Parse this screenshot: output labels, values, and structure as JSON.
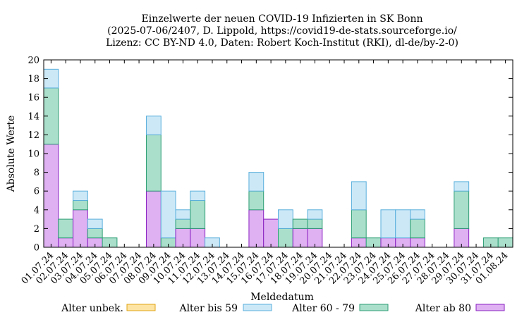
{
  "chart_data": {
    "type": "bar",
    "stacked": true,
    "title": [
      "Einzelwerte der neuen COVID-19 Infizierten in SK Bonn",
      "(2025-07-06/2407, D. Lippold, https://covid19-de-stats.sourceforge.io/",
      "Lizenz: CC BY-ND 4.0, Daten: Robert Koch-Institut (RKI), dl-de/by-2-0)"
    ],
    "xlabel": "Meldedatum",
    "ylabel": "Absolute Werte",
    "ylim": [
      0,
      20
    ],
    "yticks": [
      0,
      2,
      4,
      6,
      8,
      10,
      12,
      14,
      16,
      18,
      20
    ],
    "grid": false,
    "legend_position": "bottom",
    "categories": [
      "01.07.24",
      "02.07.24",
      "03.07.24",
      "04.07.24",
      "05.07.24",
      "06.07.24",
      "07.07.24",
      "08.07.24",
      "09.07.24",
      "10.07.24",
      "11.07.24",
      "12.07.24",
      "13.07.24",
      "14.07.24",
      "15.07.24",
      "16.07.24",
      "17.07.24",
      "18.07.24",
      "19.07.24",
      "20.07.24",
      "21.07.24",
      "22.07.24",
      "23.07.24",
      "24.07.24",
      "25.07.24",
      "26.07.24",
      "27.07.24",
      "28.07.24",
      "29.07.24",
      "30.07.24",
      "31.07.24",
      "01.08.24"
    ],
    "series": [
      {
        "name": "Alter unbek.",
        "fill": "#fde4a4",
        "stroke": "#e0a414",
        "values": [
          0,
          0,
          0,
          0,
          0,
          0,
          0,
          0,
          0,
          0,
          0,
          0,
          0,
          0,
          0,
          0,
          0,
          0,
          0,
          0,
          0,
          0,
          0,
          0,
          0,
          0,
          0,
          0,
          0,
          0,
          0,
          0
        ]
      },
      {
        "name": "Alter bis 59",
        "fill": "#cce8f7",
        "stroke": "#5aafdc",
        "values": [
          2,
          0,
          1,
          1,
          0,
          0,
          0,
          2,
          5,
          1,
          1,
          1,
          0,
          0,
          2,
          0,
          2,
          0,
          1,
          0,
          0,
          3,
          0,
          3,
          3,
          1,
          0,
          0,
          1,
          0,
          0,
          0
        ]
      },
      {
        "name": "Alter 60 - 79",
        "fill": "#aadfcb",
        "stroke": "#2e9e76",
        "values": [
          6,
          2,
          1,
          1,
          1,
          0,
          0,
          6,
          1,
          1,
          3,
          0,
          0,
          0,
          2,
          0,
          2,
          1,
          1,
          0,
          0,
          3,
          1,
          0,
          0,
          2,
          0,
          0,
          4,
          0,
          1,
          1
        ]
      },
      {
        "name": "Alter ab 80",
        "fill": "#dfb0f2",
        "stroke": "#8a22c2",
        "values": [
          11,
          1,
          4,
          1,
          0,
          0,
          0,
          6,
          0,
          2,
          2,
          0,
          0,
          0,
          4,
          3,
          0,
          2,
          2,
          0,
          0,
          1,
          0,
          1,
          1,
          1,
          0,
          0,
          2,
          0,
          0,
          0
        ]
      }
    ]
  }
}
